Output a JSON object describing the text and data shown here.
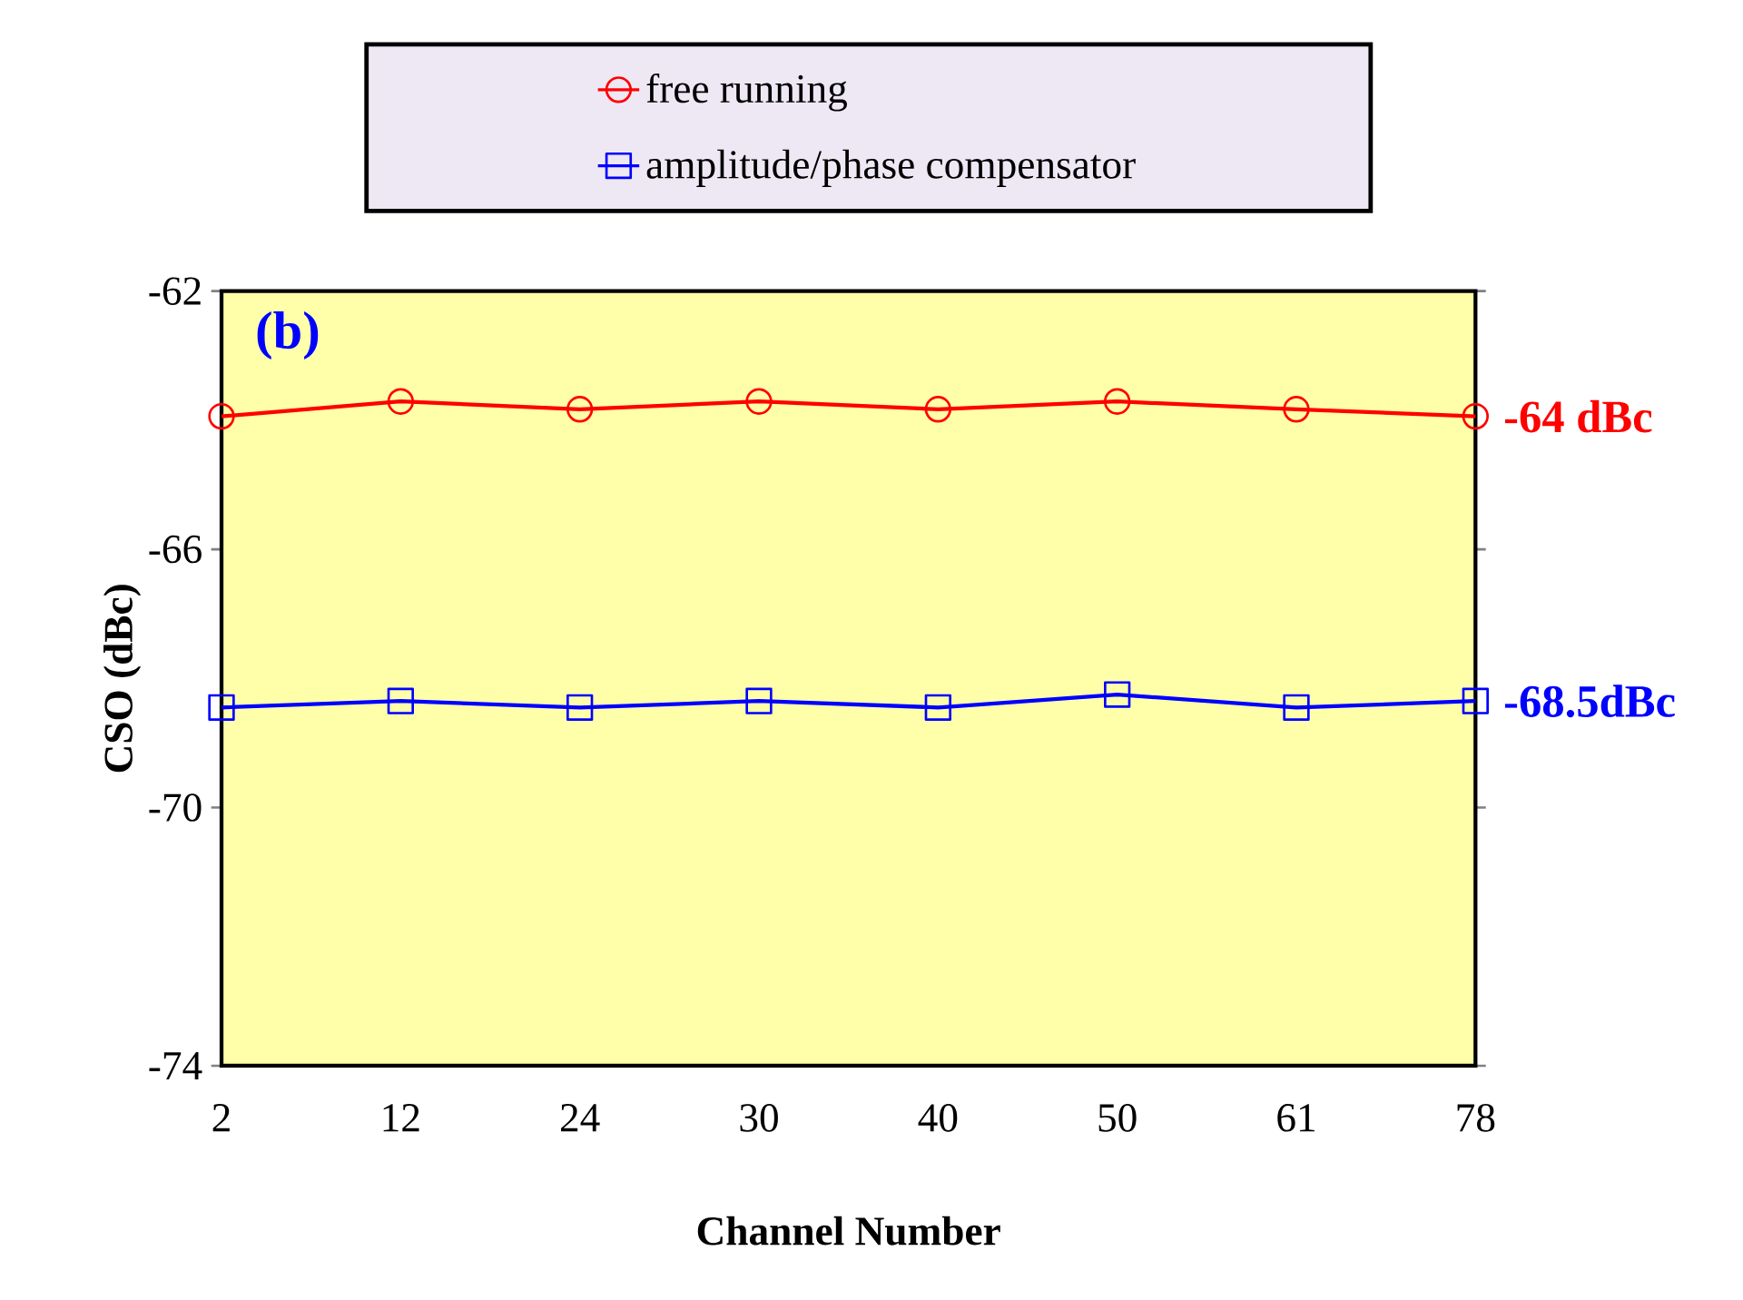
{
  "chart_data": {
    "type": "line",
    "xlabel": "Channel Number",
    "ylabel": "CSO (dBc)",
    "categories": [
      "2",
      "12",
      "24",
      "30",
      "40",
      "50",
      "61",
      "78"
    ],
    "series": [
      {
        "name": "free running",
        "color": "#ff0000",
        "marker": "circle",
        "values": [
          -63.94,
          -63.71,
          -63.83,
          -63.71,
          -63.83,
          -63.71,
          -63.83,
          -63.94
        ]
      },
      {
        "name": "amplitude/phase compensator",
        "color": "#0000ff",
        "marker": "square",
        "values": [
          -68.45,
          -68.35,
          -68.45,
          -68.35,
          -68.45,
          -68.25,
          -68.45,
          -68.35
        ]
      }
    ],
    "ylim": [
      -74,
      -62
    ],
    "yticks": [
      -74,
      -70,
      -66,
      -62
    ],
    "grid": false,
    "legend": "top",
    "line_style": "solid",
    "annotations": [
      "(b)",
      {
        "text": "-64 dBc",
        "x": "78",
        "y": -63.94
      },
      {
        "text": "-68.5dBc",
        "x": "78",
        "y": -68.35
      }
    ]
  }
}
